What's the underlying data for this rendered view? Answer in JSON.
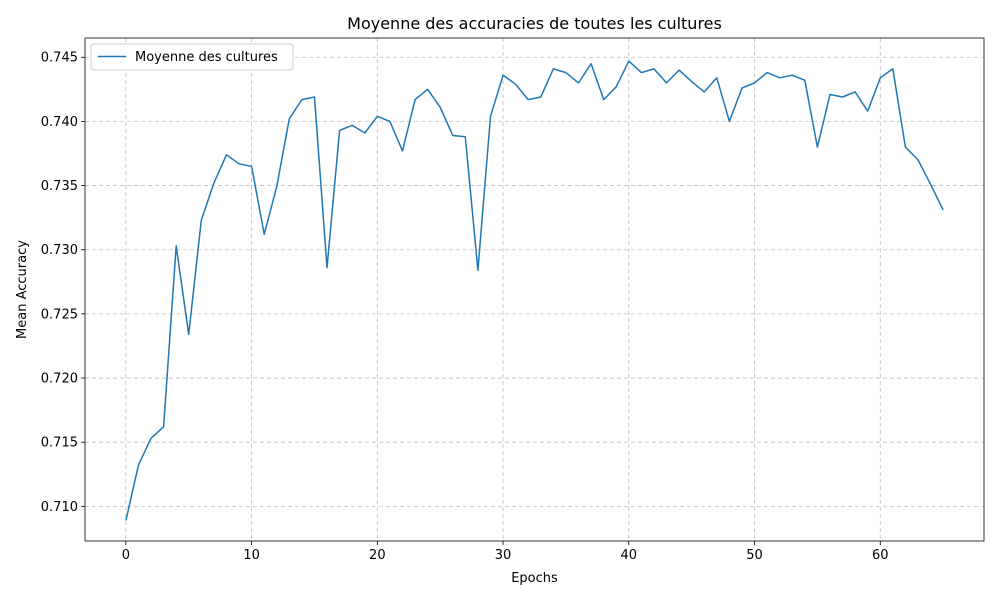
{
  "chart_data": {
    "type": "line",
    "title": "Moyenne des accuracies de toutes les cultures",
    "xlabel": "Epochs",
    "ylabel": "Mean Accuracy",
    "xlim": [
      -3.25,
      68.25
    ],
    "ylim": [
      0.7073,
      0.7465
    ],
    "xticks": [
      0,
      10,
      20,
      30,
      40,
      50,
      60
    ],
    "yticks": [
      0.71,
      0.715,
      0.72,
      0.725,
      0.73,
      0.735,
      0.74,
      0.745
    ],
    "ytick_labels": [
      "0.710",
      "0.715",
      "0.720",
      "0.725",
      "0.730",
      "0.735",
      "0.740",
      "0.745"
    ],
    "grid": true,
    "legend_position": "top-left",
    "series": [
      {
        "name": "Moyenne des cultures",
        "color": "#1f77b4",
        "x": [
          0,
          1,
          2,
          3,
          4,
          5,
          6,
          7,
          8,
          9,
          10,
          11,
          12,
          13,
          14,
          15,
          16,
          17,
          18,
          19,
          20,
          21,
          22,
          23,
          24,
          25,
          26,
          27,
          28,
          29,
          30,
          31,
          32,
          33,
          34,
          35,
          36,
          37,
          38,
          39,
          40,
          41,
          42,
          43,
          44,
          45,
          46,
          47,
          48,
          49,
          50,
          51,
          52,
          53,
          54,
          55,
          56,
          57,
          58,
          59,
          60,
          61,
          62,
          63,
          64,
          65
        ],
        "values": [
          0.7089,
          0.7132,
          0.7153,
          0.7162,
          0.7303,
          0.7234,
          0.7323,
          0.7352,
          0.7374,
          0.7367,
          0.7365,
          0.7312,
          0.7349,
          0.7402,
          0.7417,
          0.7419,
          0.7286,
          0.7393,
          0.7397,
          0.7391,
          0.7404,
          0.74,
          0.7377,
          0.7417,
          0.7425,
          0.7411,
          0.7389,
          0.7388,
          0.7284,
          0.7404,
          0.7436,
          0.7429,
          0.7417,
          0.7419,
          0.7441,
          0.7438,
          0.743,
          0.7445,
          0.7417,
          0.7427,
          0.7447,
          0.7438,
          0.7441,
          0.743,
          0.744,
          0.7431,
          0.7423,
          0.7434,
          0.74,
          0.7426,
          0.743,
          0.7438,
          0.7434,
          0.7436,
          0.7432,
          0.738,
          0.7421,
          0.7419,
          0.7423,
          0.7408,
          0.7434,
          0.7441,
          0.738,
          0.737,
          0.7351,
          0.7331
        ]
      }
    ]
  }
}
